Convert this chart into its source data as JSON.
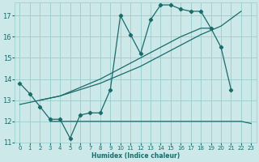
{
  "xlabel": "Humidex (Indice chaleur)",
  "bg_color": "#cce8e8",
  "grid_color": "#99cccc",
  "line_color": "#1a6b6b",
  "xlim": [
    -0.5,
    23.5
  ],
  "ylim": [
    11.0,
    17.6
  ],
  "yticks": [
    11,
    12,
    13,
    14,
    15,
    16,
    17
  ],
  "xticks": [
    0,
    1,
    2,
    3,
    4,
    5,
    6,
    7,
    8,
    9,
    10,
    11,
    12,
    13,
    14,
    15,
    16,
    17,
    18,
    19,
    20,
    21,
    22,
    23
  ],
  "series": [
    {
      "x": [
        0,
        1,
        2,
        3,
        4,
        5,
        6,
        7,
        8,
        9,
        10,
        11,
        12,
        13,
        14,
        15,
        16,
        17,
        18,
        19,
        20,
        21
      ],
      "y": [
        13.8,
        13.3,
        12.7,
        12.1,
        12.1,
        11.2,
        12.3,
        12.4,
        12.4,
        13.5,
        17.0,
        16.1,
        15.2,
        16.8,
        17.5,
        17.5,
        17.3,
        17.2,
        17.2,
        16.4,
        15.5,
        13.5
      ]
    },
    {
      "x": [
        0,
        2,
        4,
        6,
        8,
        10,
        12,
        14,
        16,
        18,
        20,
        22
      ],
      "y": [
        12.8,
        13.0,
        13.2,
        13.5,
        13.8,
        14.2,
        14.6,
        15.1,
        15.6,
        16.1,
        16.5,
        17.2
      ]
    },
    {
      "x": [
        2,
        4,
        6,
        8,
        10,
        12,
        14,
        16,
        18,
        19
      ],
      "y": [
        13.0,
        13.2,
        13.6,
        14.0,
        14.5,
        15.0,
        15.5,
        16.0,
        16.4,
        16.4
      ]
    },
    {
      "x": [
        3,
        4,
        5,
        10,
        18,
        22,
        23
      ],
      "y": [
        12.0,
        12.0,
        12.0,
        12.0,
        12.0,
        12.0,
        11.9
      ]
    }
  ]
}
